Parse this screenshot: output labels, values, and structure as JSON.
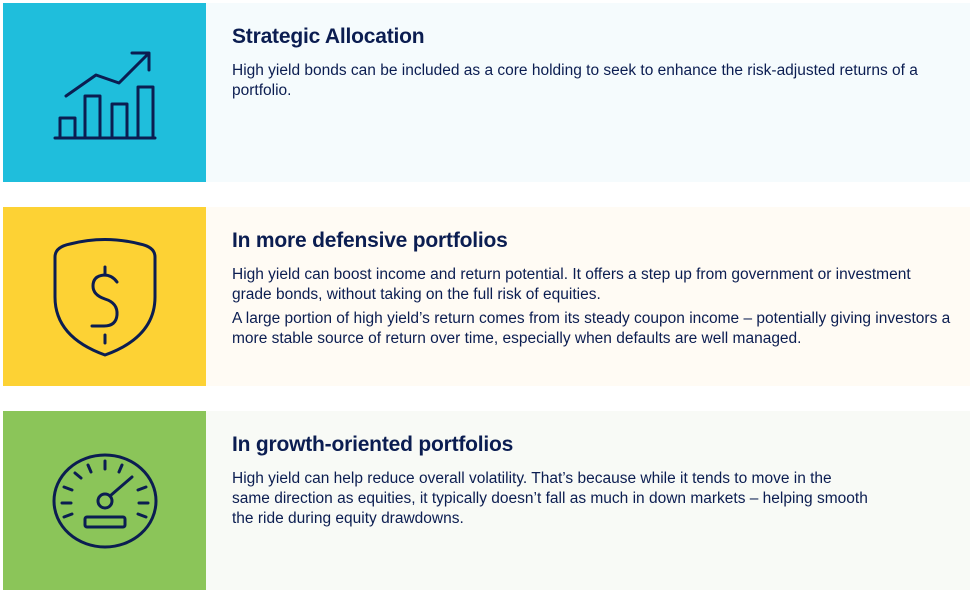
{
  "sections": [
    {
      "title": "Strategic Allocation",
      "icon": "chart-growth-icon",
      "color": "#1fbedc",
      "panel_bg": "#f5fbfd",
      "paragraphs": [
        "High yield bonds can be included as a core holding to seek to enhance the risk-adjusted returns of a portfolio."
      ]
    },
    {
      "title": "In more defensive portfolios",
      "icon": "shield-dollar-icon",
      "color": "#fdd234",
      "panel_bg": "#fffbf4",
      "paragraphs": [
        "High yield can boost income and return potential. It offers a step up from government or investment grade bonds, without taking on the full risk of equities.",
        "A large portion of high yield’s return comes from its steady coupon income – potentially giving investors a more stable source of return over time, especially when defaults are well managed."
      ]
    },
    {
      "title": "In growth-oriented portfolios",
      "icon": "speedometer-icon",
      "color": "#8bc559",
      "panel_bg": "#f8faf6",
      "paragraphs": [
        "High yield can help reduce overall volatility. That’s because while it tends to move in the same direction as equities, it typically doesn’t fall as much in down markets – helping smooth the ride during equity drawdowns."
      ]
    }
  ]
}
